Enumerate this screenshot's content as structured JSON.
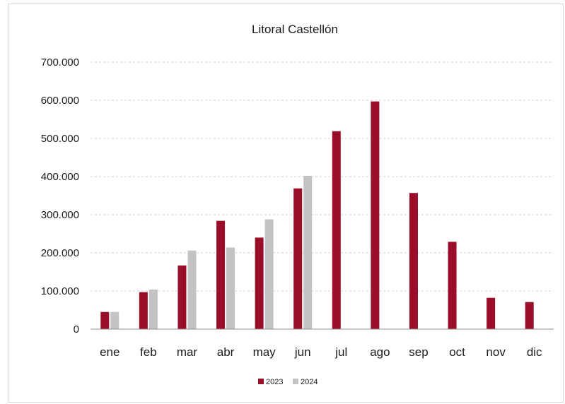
{
  "chart_data": {
    "type": "bar",
    "title": "Litoral Castellón",
    "xlabel": "",
    "ylabel": "",
    "categories": [
      "ene",
      "feb",
      "mar",
      "abr",
      "may",
      "jun",
      "jul",
      "ago",
      "sep",
      "oct",
      "nov",
      "dic"
    ],
    "series": [
      {
        "name": "2023",
        "color": "#9b0e2a",
        "values": [
          45000,
          97000,
          167000,
          284000,
          240000,
          369000,
          519000,
          597000,
          357000,
          229000,
          82000,
          71000
        ]
      },
      {
        "name": "2024",
        "color": "#c3c3c3",
        "values": [
          45000,
          104000,
          206000,
          214000,
          288000,
          402000,
          null,
          null,
          null,
          null,
          null,
          null
        ]
      }
    ],
    "ylim": [
      0,
      700000
    ],
    "yticks": [
      0,
      100000,
      200000,
      300000,
      400000,
      500000,
      600000,
      700000
    ],
    "ytick_labels": [
      "0",
      "100.000",
      "200.000",
      "300.000",
      "400.000",
      "500.000",
      "600.000",
      "700.000"
    ],
    "grid": true,
    "legend_position": "bottom"
  }
}
